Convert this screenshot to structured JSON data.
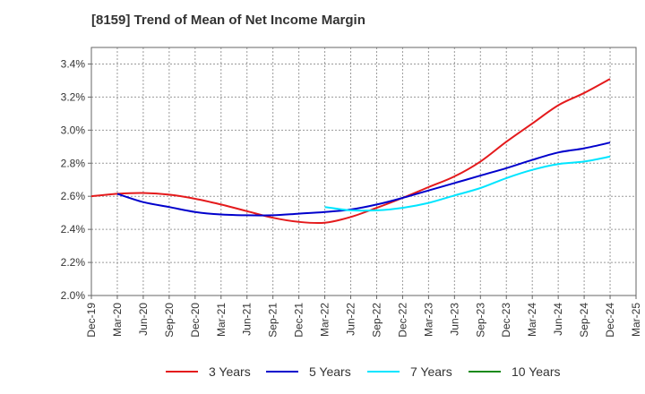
{
  "chart_data": {
    "type": "line",
    "title": "[8159]  Trend of Mean of Net Income Margin",
    "xlabel": "",
    "ylabel": "",
    "y_tick_labels": [
      "2.0%",
      "2.2%",
      "2.4%",
      "2.6%",
      "2.8%",
      "3.0%",
      "3.2%",
      "3.4%"
    ],
    "ylim": [
      2.0,
      3.5
    ],
    "x": [
      "Dec-19",
      "Mar-20",
      "Jun-20",
      "Sep-20",
      "Dec-20",
      "Mar-21",
      "Jun-21",
      "Sep-21",
      "Dec-21",
      "Mar-22",
      "Jun-22",
      "Sep-22",
      "Dec-22",
      "Mar-23",
      "Jun-23",
      "Sep-23",
      "Dec-23",
      "Mar-24",
      "Jun-24",
      "Sep-24",
      "Dec-24",
      "Mar-25"
    ],
    "grid": true,
    "legend_position": "bottom",
    "series": [
      {
        "name": "3 Years",
        "color": "#e41a1c",
        "values": [
          2.6,
          2.615,
          2.62,
          2.61,
          2.585,
          2.55,
          2.51,
          2.47,
          2.445,
          2.44,
          2.475,
          2.53,
          2.59,
          2.655,
          2.72,
          2.81,
          2.93,
          3.04,
          3.15,
          3.225,
          3.31,
          null
        ]
      },
      {
        "name": "5 Years",
        "color": "#0000cc",
        "values": [
          null,
          2.615,
          2.565,
          2.535,
          2.505,
          2.49,
          2.485,
          2.485,
          2.495,
          2.505,
          2.52,
          2.55,
          2.59,
          2.635,
          2.68,
          2.725,
          2.77,
          2.82,
          2.865,
          2.89,
          2.925,
          null
        ]
      },
      {
        "name": "7 Years",
        "color": "#00e5ff",
        "values": [
          null,
          null,
          null,
          null,
          null,
          null,
          null,
          null,
          null,
          2.535,
          2.515,
          2.515,
          2.53,
          2.56,
          2.605,
          2.65,
          2.71,
          2.76,
          2.795,
          2.81,
          2.84,
          null
        ]
      },
      {
        "name": "10 Years",
        "color": "#1a8a1a",
        "values": [
          null,
          null,
          null,
          null,
          null,
          null,
          null,
          null,
          null,
          null,
          null,
          null,
          null,
          null,
          null,
          null,
          null,
          null,
          null,
          null,
          null,
          null
        ]
      }
    ]
  }
}
